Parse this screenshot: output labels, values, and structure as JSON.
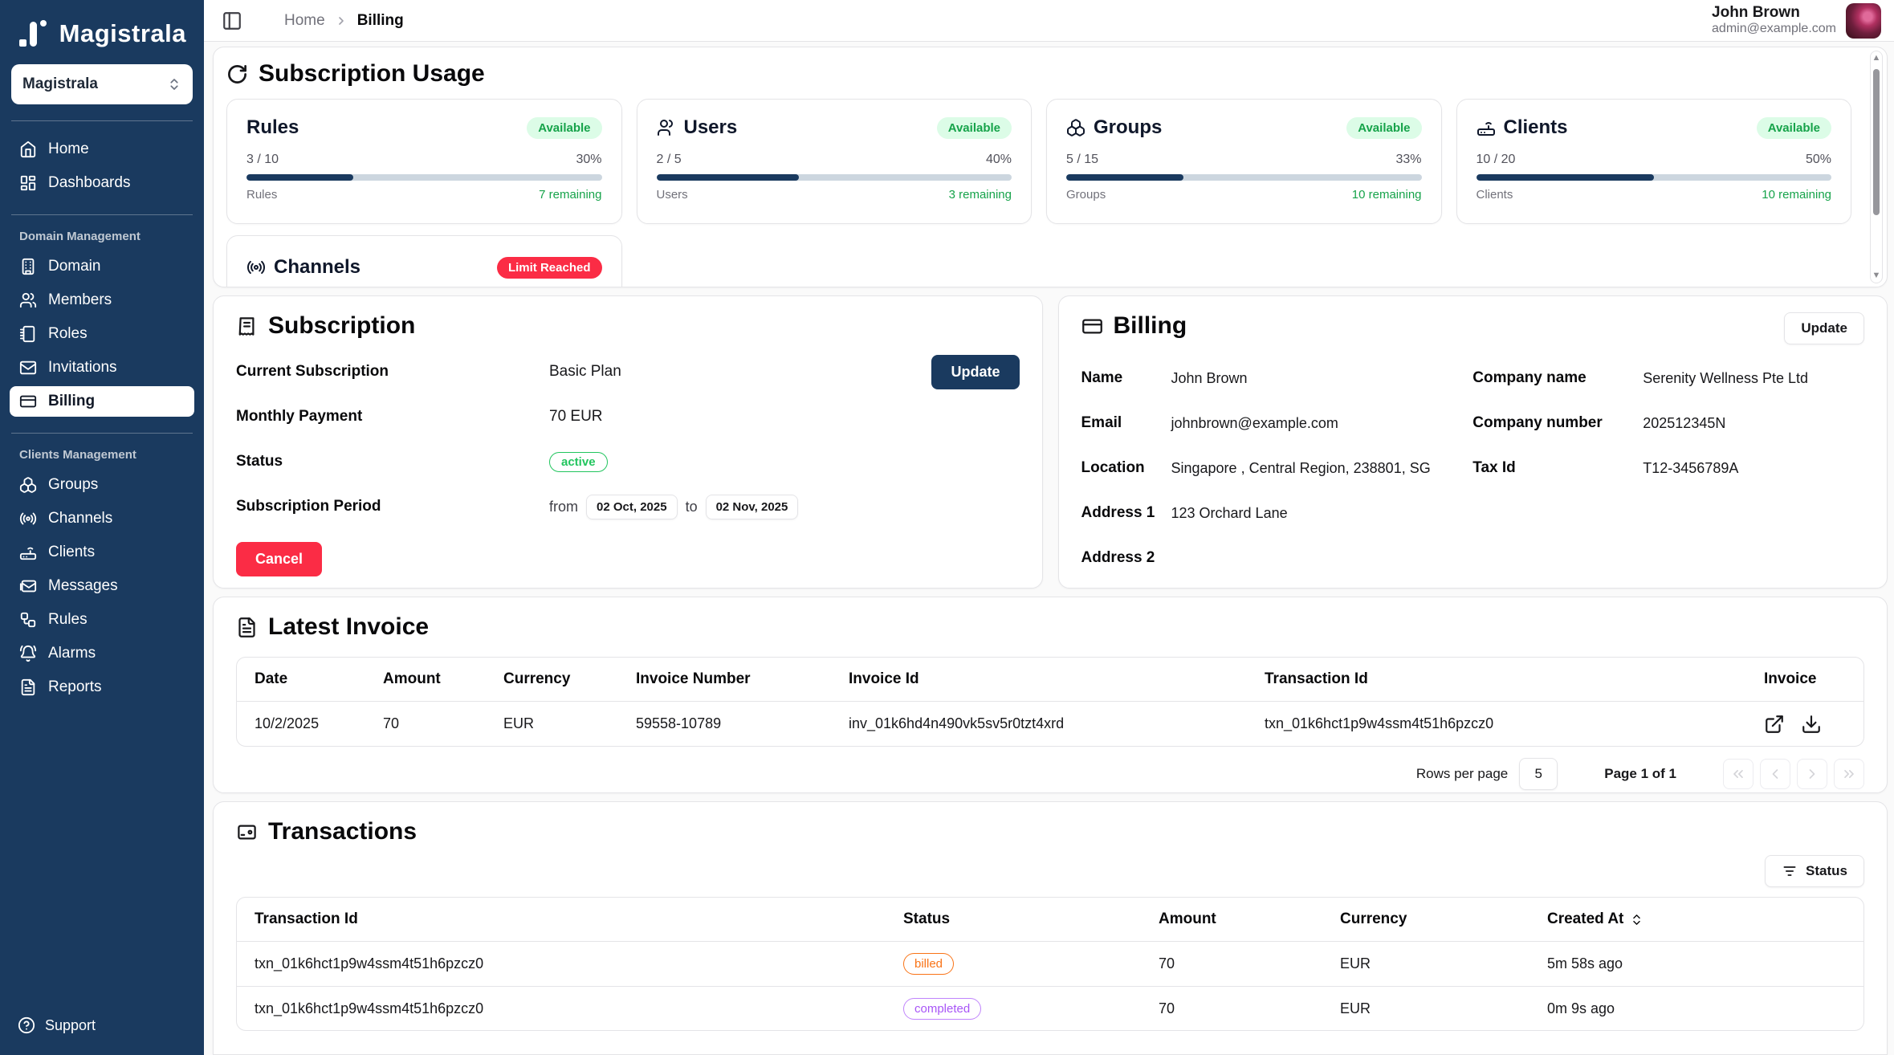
{
  "app": {
    "logo_text": "Magistrala"
  },
  "sidebar": {
    "workspace_selector": "Magistrala",
    "primary": [
      {
        "label": "Home"
      },
      {
        "label": "Dashboards"
      }
    ],
    "domain_section": {
      "title": "Domain Management",
      "items": [
        {
          "label": "Domain"
        },
        {
          "label": "Members"
        },
        {
          "label": "Roles"
        },
        {
          "label": "Invitations"
        },
        {
          "label": "Billing"
        }
      ]
    },
    "clients_section": {
      "title": "Clients Management",
      "items": [
        {
          "label": "Groups"
        },
        {
          "label": "Channels"
        },
        {
          "label": "Clients"
        },
        {
          "label": "Messages"
        },
        {
          "label": "Rules"
        },
        {
          "label": "Alarms"
        },
        {
          "label": "Reports"
        }
      ]
    },
    "support_label": "Support"
  },
  "topbar": {
    "breadcrumb_home": "Home",
    "breadcrumb_current": "Billing",
    "user_name": "John Brown",
    "user_email": "admin@example.com"
  },
  "usage": {
    "title": "Subscription Usage",
    "cards": [
      {
        "title": "Rules",
        "badge": "Available",
        "used": "3 / 10",
        "percent": "30%",
        "label": "Rules",
        "remaining": "7 remaining"
      },
      {
        "title": "Users",
        "badge": "Available",
        "used": "2 / 5",
        "percent": "40%",
        "label": "Users",
        "remaining": "3 remaining"
      },
      {
        "title": "Groups",
        "badge": "Available",
        "used": "5 / 15",
        "percent": "33%",
        "label": "Groups",
        "remaining": "10 remaining"
      },
      {
        "title": "Clients",
        "badge": "Available",
        "used": "10 / 20",
        "percent": "50%",
        "label": "Clients",
        "remaining": "10 remaining"
      }
    ],
    "channels_card": {
      "title": "Channels",
      "badge": "Limit Reached"
    }
  },
  "subscription": {
    "title": "Subscription",
    "current_label": "Current Subscription",
    "current_value": "Basic Plan",
    "update_label": "Update",
    "monthly_label": "Monthly Payment",
    "monthly_value": "70 EUR",
    "status_label": "Status",
    "status_value": "active",
    "period_label": "Subscription Period",
    "period_from_word": "from",
    "period_from": "02 Oct, 2025",
    "period_to_word": "to",
    "period_to": "02 Nov, 2025",
    "cancel_label": "Cancel"
  },
  "billing": {
    "title": "Billing",
    "update_label": "Update",
    "fields_left": [
      {
        "label": "Name",
        "value": "John Brown"
      },
      {
        "label": "Email",
        "value": "johnbrown@example.com"
      },
      {
        "label": "Location",
        "value": "Singapore , Central Region, 238801, SG"
      },
      {
        "label": "Address 1",
        "value": "123 Orchard Lane"
      },
      {
        "label": "Address 2",
        "value": ""
      }
    ],
    "fields_right": [
      {
        "label": "Company name",
        "value": "Serenity Wellness Pte Ltd"
      },
      {
        "label": "Company number",
        "value": "202512345N"
      },
      {
        "label": "Tax Id",
        "value": "T12-3456789A"
      }
    ]
  },
  "invoice": {
    "title": "Latest Invoice",
    "columns": [
      "Date",
      "Amount",
      "Currency",
      "Invoice Number",
      "Invoice Id",
      "Transaction Id",
      "Invoice"
    ],
    "row": {
      "date": "10/2/2025",
      "amount": "70",
      "currency": "EUR",
      "invoice_number": "59558-10789",
      "invoice_id": "inv_01k6hd4n490vk5sv5r0tzt4xrd",
      "transaction_id": "txn_01k6hct1p9w4ssm4t51h6pzcz0"
    },
    "pagination": {
      "rows_per_page_label": "Rows per page",
      "rows_per_page_value": "5",
      "page_label": "Page 1 of 1"
    }
  },
  "transactions": {
    "title": "Transactions",
    "filter_label": "Status",
    "columns": [
      "Transaction Id",
      "Status",
      "Amount",
      "Currency",
      "Created At"
    ],
    "rows": [
      {
        "transaction_id": "txn_01k6hct1p9w4ssm4t51h6pzcz0",
        "status": "billed",
        "amount": "70",
        "currency": "EUR",
        "created_at": "5m 58s ago"
      },
      {
        "transaction_id": "txn_01k6hct1p9w4ssm4t51h6pzcz0",
        "status": "completed",
        "amount": "70",
        "currency": "EUR",
        "created_at": "0m 9s ago"
      }
    ]
  },
  "colors": {
    "sidebar_navy": "#1a3a5f",
    "green": "#16a34a",
    "red": "#fb2c45",
    "orange": "#f97316",
    "purple": "#a855f7"
  }
}
